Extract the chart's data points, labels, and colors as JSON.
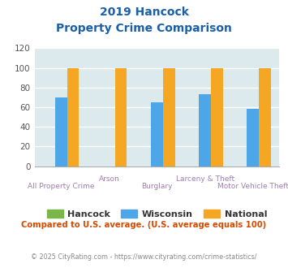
{
  "title_line1": "2019 Hancock",
  "title_line2": "Property Crime Comparison",
  "categories": [
    "All Property Crime",
    "Arson",
    "Burglary",
    "Larceny & Theft",
    "Motor Vehicle Theft"
  ],
  "hancock_values": [
    0,
    0,
    0,
    0,
    0
  ],
  "wisconsin_values": [
    70,
    0,
    65,
    73,
    58
  ],
  "national_values": [
    100,
    100,
    100,
    100,
    100
  ],
  "hancock_color": "#7ab648",
  "wisconsin_color": "#4da6e8",
  "national_color": "#f5a623",
  "ylim": [
    0,
    120
  ],
  "yticks": [
    0,
    20,
    40,
    60,
    80,
    100,
    120
  ],
  "background_color": "#dce9ed",
  "grid_color": "#ffffff",
  "title_color": "#1a5fa8",
  "xlabel_color": "#9e7eb0",
  "footer_text": "Compared to U.S. average. (U.S. average equals 100)",
  "footer_color": "#d44a00",
  "copyright_text": "© 2025 CityRating.com - https://www.cityrating.com/crime-statistics/",
  "copyright_color": "#888888",
  "bar_width": 0.25,
  "legend_label_color": "#333333",
  "tick_label_color": "#555555"
}
